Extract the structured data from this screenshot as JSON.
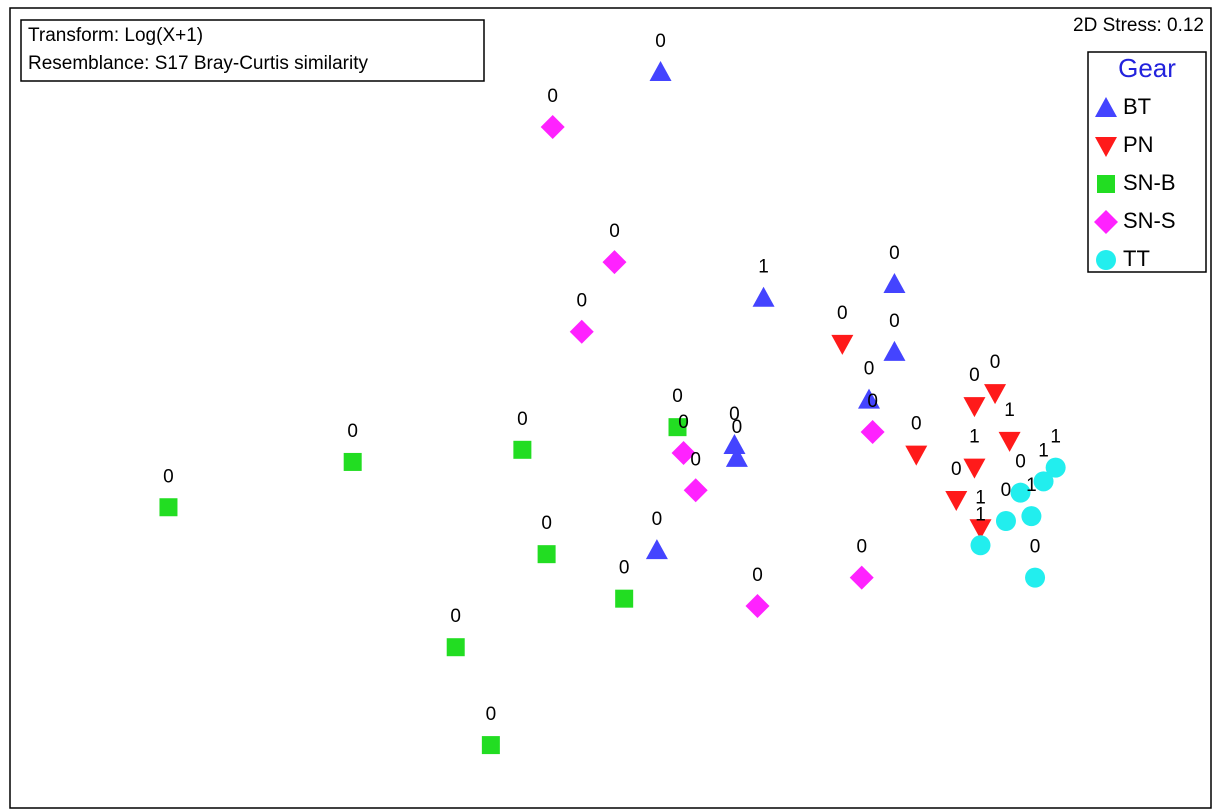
{
  "chart_data": {
    "type": "scatter",
    "notes": [
      "Transform: Log(X+1)",
      "Resemblance: S17 Bray-Curtis similarity"
    ],
    "stress": "2D Stress: 0.12",
    "legend_title": "Gear",
    "legend_position": "upper right",
    "xlim": [
      0,
      100
    ],
    "ylim": [
      0,
      100
    ],
    "series": [
      {
        "name": "BT",
        "color": "#4444ff",
        "marker": "triangle-up",
        "x": [
          54.5,
          63.0,
          73.8,
          73.8,
          71.7,
          60.6,
          60.8,
          54.2
        ],
        "y": [
          91.1,
          63.2,
          64.9,
          56.5,
          50.6,
          45.0,
          43.4,
          32.0
        ],
        "labels": [
          "0",
          "1",
          "0",
          "0",
          "0",
          "0",
          "0",
          "0"
        ]
      },
      {
        "name": "PN",
        "color": "#ff1a1a",
        "marker": "triangle-down",
        "x": [
          69.5,
          80.4,
          82.1,
          83.3,
          75.6,
          80.4,
          78.9,
          80.9
        ],
        "y": [
          57.5,
          49.8,
          51.4,
          45.5,
          43.8,
          42.2,
          38.2,
          34.7
        ],
        "labels": [
          "0",
          "0",
          "0",
          "1",
          "0",
          "1",
          "0",
          "1"
        ]
      },
      {
        "name": "SN-B",
        "color": "#22dd22",
        "marker": "square",
        "x": [
          13.9,
          29.1,
          43.1,
          55.9,
          45.1,
          51.5,
          37.6,
          40.5
        ],
        "y": [
          37.3,
          42.9,
          44.4,
          47.2,
          31.5,
          26.0,
          20.0,
          7.9
        ],
        "labels": [
          "0",
          "0",
          "0",
          "0",
          "0",
          "0",
          "0",
          "0"
        ]
      },
      {
        "name": "SN-S",
        "color": "#ff22ff",
        "marker": "diamond",
        "x": [
          45.6,
          50.7,
          48.0,
          72.0,
          56.4,
          57.4,
          71.1,
          62.5
        ],
        "y": [
          84.3,
          67.6,
          59.0,
          46.6,
          44.0,
          39.4,
          28.6,
          25.1
        ],
        "labels": [
          "0",
          "0",
          "0",
          "0",
          "0",
          "0",
          "0",
          "0"
        ]
      },
      {
        "name": "TT",
        "color": "#22eeee",
        "marker": "circle",
        "x": [
          87.1,
          86.1,
          84.2,
          85.1,
          83.0,
          80.9,
          85.4
        ],
        "y": [
          42.2,
          40.5,
          39.1,
          36.2,
          35.6,
          32.6,
          28.6
        ],
        "labels": [
          "1",
          "1",
          "0",
          "1",
          "0",
          "1",
          "0"
        ]
      }
    ]
  }
}
